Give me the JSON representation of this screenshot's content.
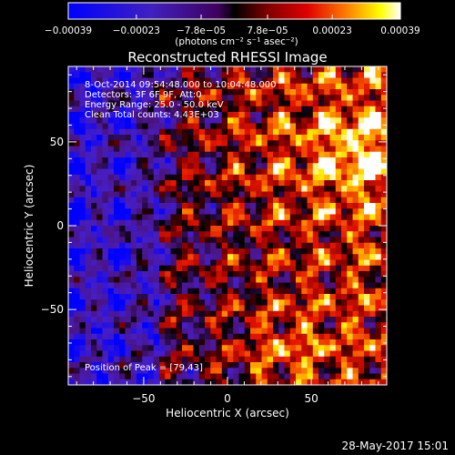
{
  "chart_data": {
    "type": "heatmap",
    "title": "Reconstructed RHESSI Image",
    "xlabel": "Heliocentric X (arcsec)",
    "ylabel": "Heliocentric Y (arcsec)",
    "xlim": [
      -95,
      95
    ],
    "ylim": [
      -95,
      95
    ],
    "x_ticks": [
      -50,
      0,
      50
    ],
    "y_ticks": [
      -50,
      0,
      50
    ],
    "x_tick_labels": [
      "−50",
      "0",
      "50"
    ],
    "y_tick_labels": [
      "−50",
      "0",
      "50"
    ],
    "colorbar": {
      "min": -0.00039,
      "max": 0.00039,
      "ticks": [
        -0.00039,
        -0.00023,
        -7.8e-05,
        7.8e-05,
        0.00023,
        0.00039
      ],
      "tick_labels": [
        "−0.00039",
        "−0.00023",
        "−7.8e−05",
        "7.8e−05",
        "0.00023",
        "0.00039"
      ],
      "units_label": "(photons cm⁻² s⁻¹ asec⁻²)"
    },
    "annotations": [
      "8-Oct-2014 09:54:48.000 to 10:04:48.000",
      "Detectors: 3F 6F 9F, Att:0",
      "Energy Range: 25.0 - 50.0 keV",
      "Clean     Total counts: 4.43E+03"
    ],
    "peak_label": "Position of Peak = [79,43]",
    "peak_position": [
      79,
      43
    ]
  },
  "footer": {
    "timestamp": "28-May-2017 15:01"
  },
  "colors": {
    "background": "#000000",
    "text": "#ffffff"
  }
}
